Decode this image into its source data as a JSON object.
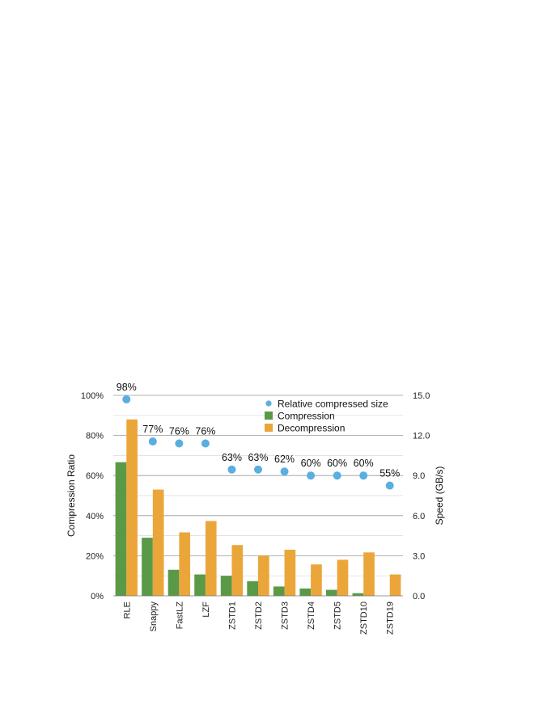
{
  "chart_data": {
    "type": "bar",
    "categories": [
      "RLE",
      "Snappy",
      "FastLZ",
      "LZF",
      "ZSTD1",
      "ZSTD2",
      "ZSTD3",
      "ZSTD4",
      "ZSTD5",
      "ZSTD10",
      "ZSTD19"
    ],
    "series": [
      {
        "name": "Relative compressed size",
        "type": "scatter",
        "axis": "left",
        "values": [
          98,
          77,
          76,
          76,
          63,
          63,
          62,
          60,
          60,
          60,
          55
        ],
        "labels": [
          "98%",
          "77%",
          "76%",
          "76%",
          "63%",
          "63%",
          "62%",
          "60%",
          "60%",
          "60%",
          "55%"
        ],
        "color": "#5aaee0"
      },
      {
        "name": "Compression",
        "type": "bar",
        "axis": "right",
        "values": [
          10.0,
          4.35,
          1.95,
          1.6,
          1.5,
          1.1,
          0.7,
          0.55,
          0.45,
          0.2,
          0.0
        ],
        "color": "#5a9a47"
      },
      {
        "name": "Decompression",
        "type": "bar",
        "axis": "right",
        "values": [
          13.2,
          7.95,
          4.75,
          5.6,
          3.8,
          3.0,
          3.45,
          2.35,
          2.7,
          3.25,
          1.6
        ],
        "color": "#eba63a"
      }
    ],
    "ylabel": "Compression Ratio",
    "y2label": "Speed (GB/s)",
    "ylim": [
      0,
      100
    ],
    "y2lim": [
      0,
      15
    ],
    "yticks": [
      "0%",
      "20%",
      "40%",
      "60%",
      "80%",
      "100%"
    ],
    "y2ticks": [
      "0.0",
      "3.0",
      "6.0",
      "9.0",
      "12.0",
      "15.0"
    ],
    "grid": true,
    "legend": "top-right"
  }
}
